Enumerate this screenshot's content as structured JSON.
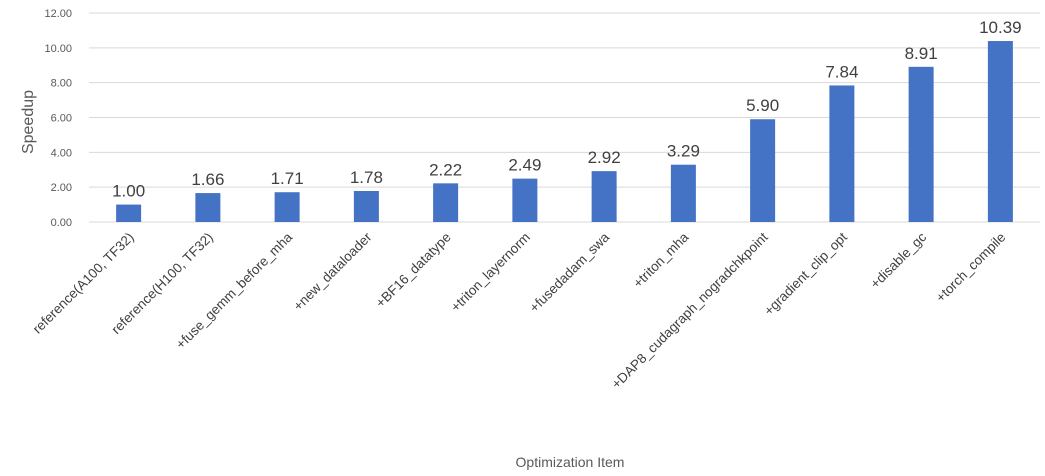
{
  "chart_data": {
    "type": "bar",
    "categories": [
      "reference(A100, TF32)",
      "reference(H100, TF32)",
      "+fuse_gemm_before_mha",
      "+new_dataloader",
      "+BF16_datatype",
      "+triton_layernorm",
      "+fusedadam_swa",
      "+triton_mha",
      "+DAP8_cudagraph_nogradchkpoint",
      "+gradient_clip_opt",
      "+disable_gc",
      "+torch_compile"
    ],
    "values": [
      1.0,
      1.66,
      1.71,
      1.78,
      2.22,
      2.49,
      2.92,
      3.29,
      5.9,
      7.84,
      8.91,
      10.39
    ],
    "data_labels": [
      "1.00",
      "1.66",
      "1.71",
      "1.78",
      "2.22",
      "2.49",
      "2.92",
      "3.29",
      "5.90",
      "7.84",
      "8.91",
      "10.39"
    ],
    "ylim": [
      0,
      12
    ],
    "yticks": [
      "0.00",
      "2.00",
      "4.00",
      "6.00",
      "8.00",
      "10.00",
      "12.00"
    ],
    "xlabel": "Optimization Item",
    "ylabel": "Speedup",
    "grid": true,
    "bar_color": "#4472C4",
    "grid_color": "#D9D9D9"
  }
}
